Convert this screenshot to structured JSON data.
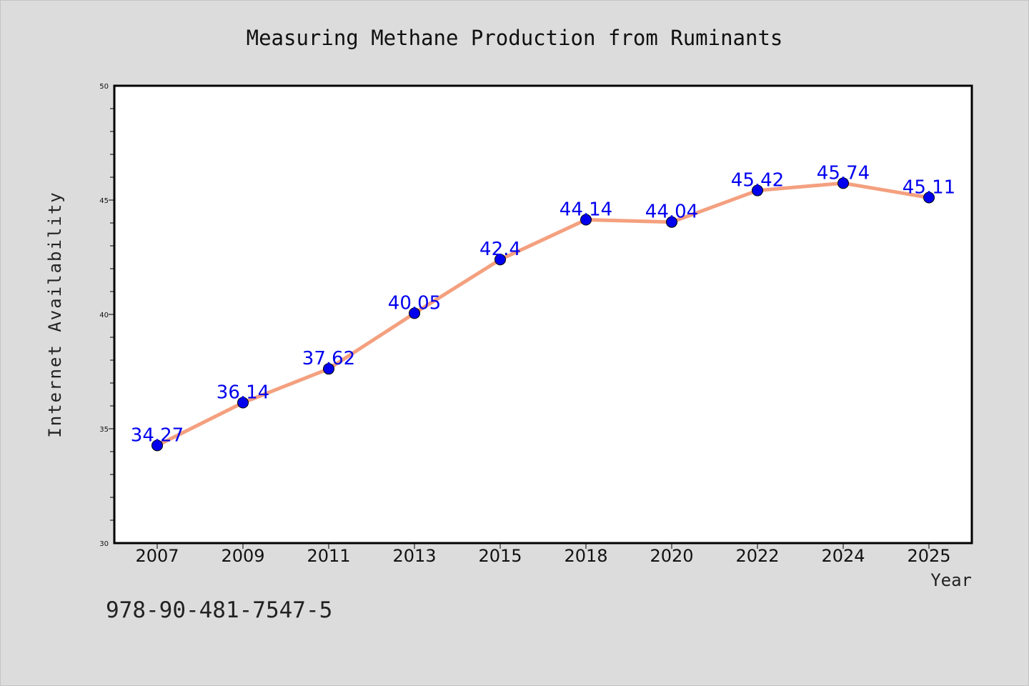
{
  "chart_data": {
    "type": "line",
    "title": "Measuring Methane Production from Ruminants",
    "xlabel": "Year",
    "ylabel": "Internet Availability",
    "categories": [
      "2007",
      "2009",
      "2011",
      "2013",
      "2015",
      "2018",
      "2020",
      "2022",
      "2024",
      "2025"
    ],
    "series": [
      {
        "values": [
          34.27,
          36.14,
          37.62,
          40.05,
          42.4,
          44.14,
          44.04,
          45.42,
          45.74,
          45.11
        ],
        "labels": [
          "34.27",
          "36.14",
          "37.62",
          "40.05",
          "42.4",
          "44.14",
          "44.04",
          "45.42",
          "45.74",
          "45.11"
        ],
        "line_color": "#f4a07f",
        "marker_color": "#0000ee",
        "label_color": "#0000ee"
      }
    ],
    "ylim": [
      30,
      50
    ],
    "yticks": [
      "30",
      "35",
      "40",
      "45",
      "50"
    ],
    "grid": false,
    "legend": "none"
  },
  "footnote": "978-90-481-7547-5",
  "colors": {
    "background": "#dcdcdc",
    "plot_area": "#ffffff",
    "axis": "#000000"
  }
}
